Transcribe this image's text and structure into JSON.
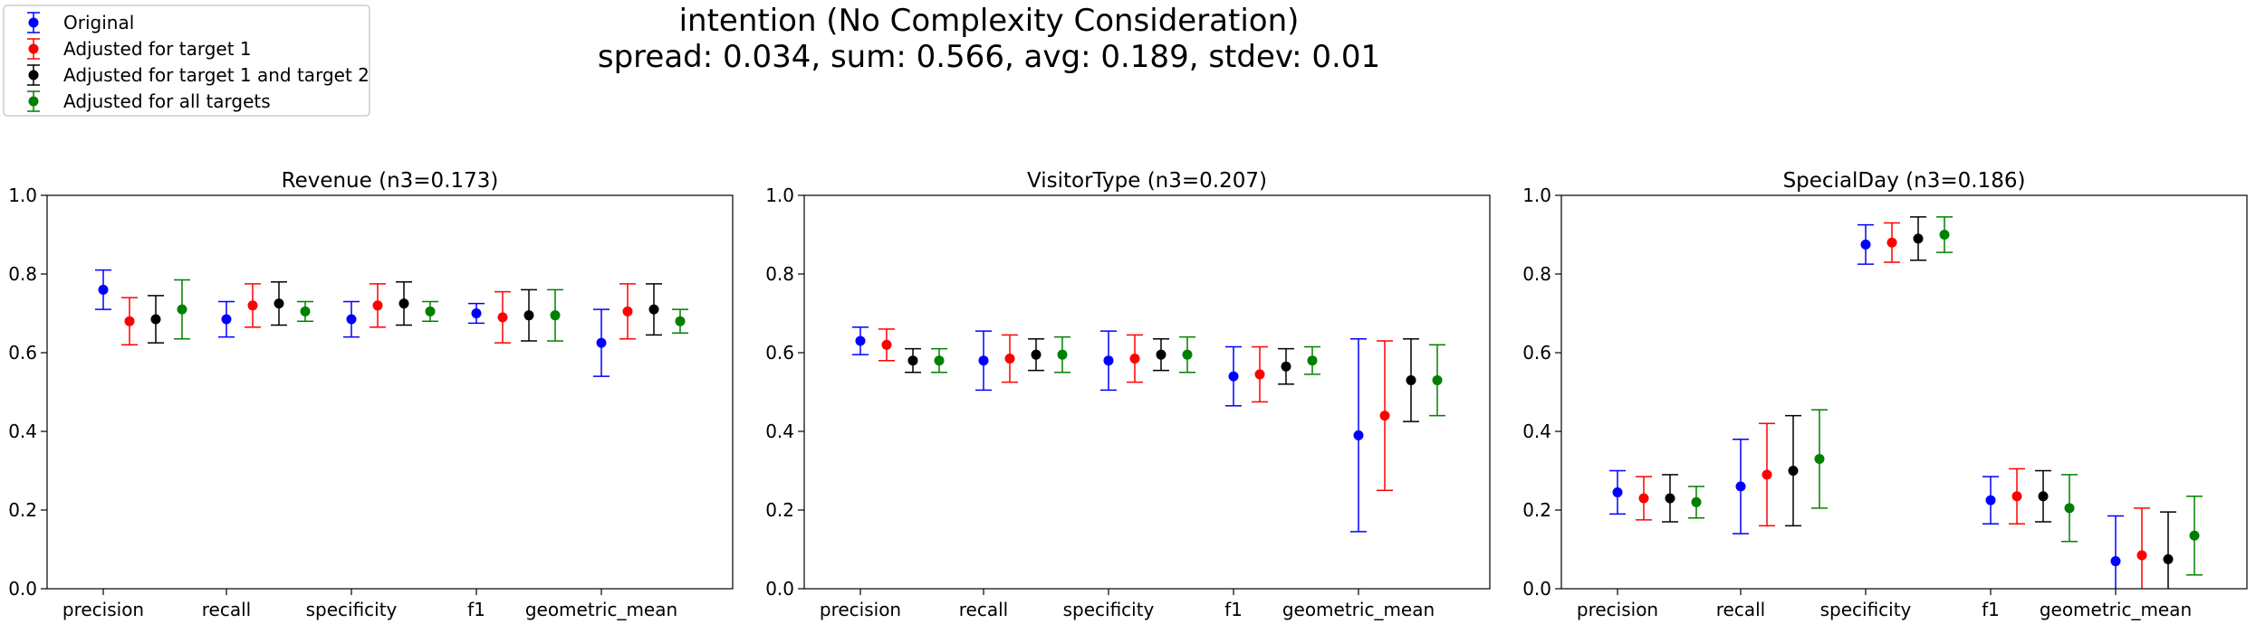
{
  "suptitle": {
    "line1": "intention (No Complexity Consideration)",
    "line2": "spread: 0.034, sum: 0.566, avg: 0.189, stdev: 0.01"
  },
  "legend": {
    "placement": "top-left",
    "entries": [
      {
        "name": "Original",
        "color": "#0000ff"
      },
      {
        "name": "Adjusted for target 1",
        "color": "#ff0000"
      },
      {
        "name": "Adjusted for target 1 and target 2",
        "color": "#000000"
      },
      {
        "name": "Adjusted for all targets",
        "color": "#008000"
      }
    ]
  },
  "chart_data": [
    {
      "type": "scatter",
      "title": "Revenue (n3=0.173)",
      "categories": [
        "precision",
        "recall",
        "specificity",
        "f1",
        "geometric_mean"
      ],
      "ylim": [
        0,
        1.0
      ],
      "yticks": [
        "0.0",
        "0.2",
        "0.4",
        "0.6",
        "0.8",
        "1.0"
      ],
      "grid": false,
      "series": [
        {
          "name": "Original",
          "color": "#0000ff",
          "values": [
            0.76,
            0.685,
            0.685,
            0.7,
            0.625
          ],
          "errors": [
            0.05,
            0.045,
            0.045,
            0.025,
            0.085
          ]
        },
        {
          "name": "Adjusted for target 1",
          "color": "#ff0000",
          "values": [
            0.68,
            0.72,
            0.72,
            0.69,
            0.705
          ],
          "errors": [
            0.06,
            0.055,
            0.055,
            0.065,
            0.07
          ]
        },
        {
          "name": "Adjusted for target 1 and target 2",
          "color": "#000000",
          "values": [
            0.685,
            0.725,
            0.725,
            0.695,
            0.71
          ],
          "errors": [
            0.06,
            0.055,
            0.055,
            0.065,
            0.065
          ]
        },
        {
          "name": "Adjusted for all targets",
          "color": "#008000",
          "values": [
            0.71,
            0.705,
            0.705,
            0.695,
            0.68
          ],
          "errors": [
            0.075,
            0.025,
            0.025,
            0.065,
            0.03
          ]
        }
      ]
    },
    {
      "type": "scatter",
      "title": "VisitorType (n3=0.207)",
      "categories": [
        "precision",
        "recall",
        "specificity",
        "f1",
        "geometric_mean"
      ],
      "ylim": [
        0,
        1.0
      ],
      "yticks": [
        "0.0",
        "0.2",
        "0.4",
        "0.6",
        "0.8",
        "1.0"
      ],
      "grid": false,
      "series": [
        {
          "name": "Original",
          "color": "#0000ff",
          "values": [
            0.63,
            0.58,
            0.58,
            0.54,
            0.39
          ],
          "errors": [
            0.035,
            0.075,
            0.075,
            0.075,
            0.245
          ]
        },
        {
          "name": "Adjusted for target 1",
          "color": "#ff0000",
          "values": [
            0.62,
            0.585,
            0.585,
            0.545,
            0.44
          ],
          "errors": [
            0.04,
            0.06,
            0.06,
            0.07,
            0.19
          ]
        },
        {
          "name": "Adjusted for target 1 and target 2",
          "color": "#000000",
          "values": [
            0.58,
            0.595,
            0.595,
            0.565,
            0.53
          ],
          "errors": [
            0.03,
            0.04,
            0.04,
            0.045,
            0.105
          ]
        },
        {
          "name": "Adjusted for all targets",
          "color": "#008000",
          "values": [
            0.58,
            0.595,
            0.595,
            0.58,
            0.53
          ],
          "errors": [
            0.03,
            0.045,
            0.045,
            0.035,
            0.09
          ]
        }
      ]
    },
    {
      "type": "scatter",
      "title": "SpecialDay (n3=0.186)",
      "categories": [
        "precision",
        "recall",
        "specificity",
        "f1",
        "geometric_mean"
      ],
      "ylim": [
        0,
        1.0
      ],
      "yticks": [
        "0.0",
        "0.2",
        "0.4",
        "0.6",
        "0.8",
        "1.0"
      ],
      "grid": false,
      "series": [
        {
          "name": "Original",
          "color": "#0000ff",
          "values": [
            0.245,
            0.26,
            0.875,
            0.225,
            0.07
          ],
          "errors": [
            0.055,
            0.12,
            0.05,
            0.06,
            0.115
          ]
        },
        {
          "name": "Adjusted for target 1",
          "color": "#ff0000",
          "values": [
            0.23,
            0.29,
            0.88,
            0.235,
            0.085
          ],
          "errors": [
            0.055,
            0.13,
            0.05,
            0.07,
            0.12
          ]
        },
        {
          "name": "Adjusted for target 1 and target 2",
          "color": "#000000",
          "values": [
            0.23,
            0.3,
            0.89,
            0.235,
            0.075
          ],
          "errors": [
            0.06,
            0.14,
            0.055,
            0.065,
            0.12
          ]
        },
        {
          "name": "Adjusted for all targets",
          "color": "#008000",
          "values": [
            0.22,
            0.33,
            0.9,
            0.205,
            0.135
          ],
          "errors": [
            0.04,
            0.125,
            0.045,
            0.085,
            0.1
          ]
        }
      ]
    }
  ]
}
